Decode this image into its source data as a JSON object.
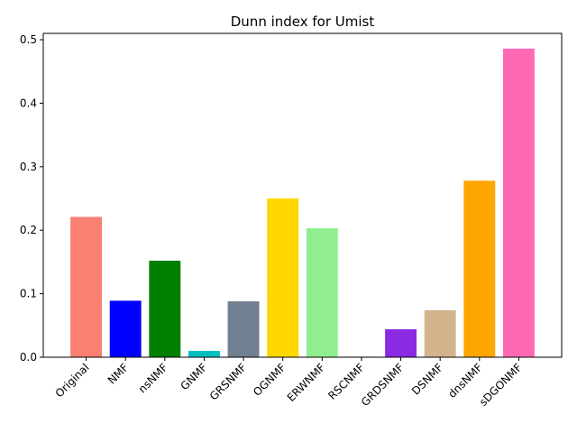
{
  "chart_data": {
    "type": "bar",
    "title": "Dunn index for Umist",
    "xlabel": "",
    "ylabel": "",
    "categories": [
      "Original",
      "NMF",
      "nsNMF",
      "GNMF",
      "GRSNMF",
      "OGNMF",
      "ERWNMF",
      "RSCNMF",
      "GRDSNMF",
      "DSNMF",
      "dnsNMF",
      "sDGONMF"
    ],
    "values": [
      0.221,
      0.089,
      0.152,
      0.01,
      0.088,
      0.25,
      0.203,
      0.001,
      0.044,
      0.074,
      0.278,
      0.486
    ],
    "colors": [
      "#fa8072",
      "#0000ff",
      "#008000",
      "#00bfbf",
      "#708090",
      "#ffd700",
      "#90ee90",
      "#bfbfbf",
      "#8a2be2",
      "#d2b48c",
      "#ffa500",
      "#ff69b4"
    ],
    "ylim": [
      0,
      0.51
    ],
    "yticks": [
      0.0,
      0.1,
      0.2,
      0.3,
      0.4,
      0.5
    ],
    "ytick_labels": [
      "0.0",
      "0.1",
      "0.2",
      "0.3",
      "0.4",
      "0.5"
    ],
    "grid": false,
    "legend": "none"
  }
}
